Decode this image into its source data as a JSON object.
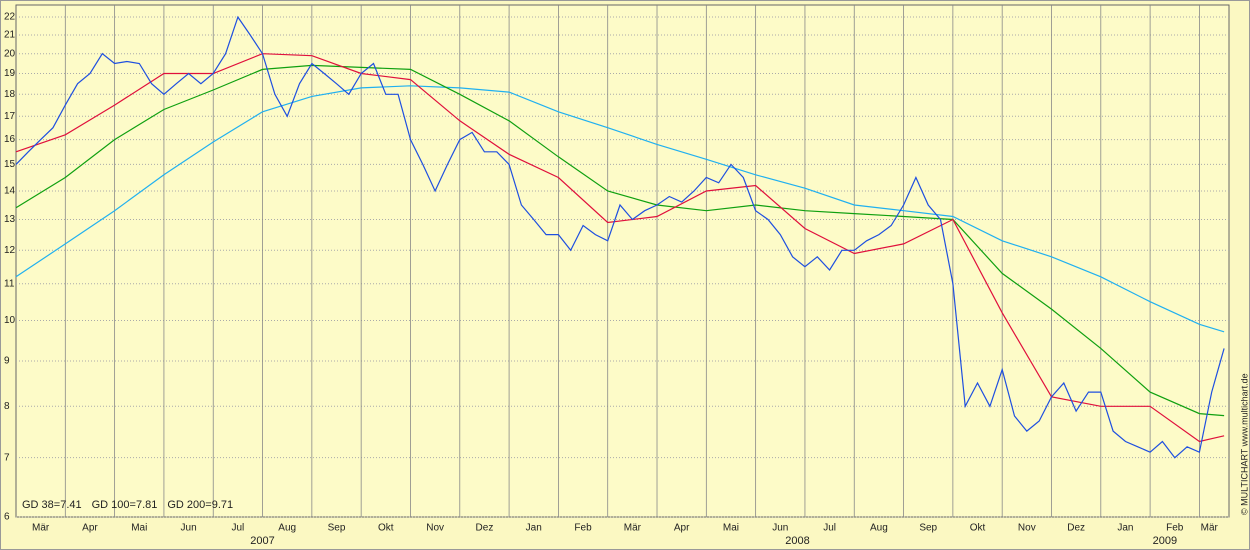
{
  "chart_data": {
    "type": "line",
    "log_scale": true,
    "grid": true,
    "xlim": [
      0,
      24.6
    ],
    "ylim": [
      6,
      22.7
    ],
    "yticks": [
      6,
      7,
      8,
      9,
      10,
      11,
      12,
      13,
      14,
      15,
      16,
      17,
      18,
      19,
      20,
      21,
      22
    ],
    "xticks": [
      {
        "value": 0.5,
        "label": "Mär"
      },
      {
        "value": 1.5,
        "label": "Apr"
      },
      {
        "value": 2.5,
        "label": "Mai"
      },
      {
        "value": 3.5,
        "label": "Jun"
      },
      {
        "value": 4.5,
        "label": "Jul"
      },
      {
        "value": 5.5,
        "label": "Aug"
      },
      {
        "value": 6.5,
        "label": "Sep"
      },
      {
        "value": 7.5,
        "label": "Okt"
      },
      {
        "value": 8.5,
        "label": "Nov"
      },
      {
        "value": 9.5,
        "label": "Dez"
      },
      {
        "value": 10.5,
        "label": "Jan"
      },
      {
        "value": 11.5,
        "label": "Feb"
      },
      {
        "value": 12.5,
        "label": "Mär"
      },
      {
        "value": 13.5,
        "label": "Apr"
      },
      {
        "value": 14.5,
        "label": "Mai"
      },
      {
        "value": 15.5,
        "label": "Jun"
      },
      {
        "value": 16.5,
        "label": "Jul"
      },
      {
        "value": 17.5,
        "label": "Aug"
      },
      {
        "value": 18.5,
        "label": "Sep"
      },
      {
        "value": 19.5,
        "label": "Okt"
      },
      {
        "value": 20.5,
        "label": "Nov"
      },
      {
        "value": 21.5,
        "label": "Dez"
      },
      {
        "value": 22.5,
        "label": "Jan"
      },
      {
        "value": 23.5,
        "label": "Feb"
      },
      {
        "value": 24.2,
        "label": "Mär"
      }
    ],
    "year_labels": [
      {
        "value": 5,
        "label": "2007"
      },
      {
        "value": 15.85,
        "label": "2008"
      },
      {
        "value": 23.3,
        "label": "2009"
      }
    ],
    "watermark": "© MULTICHART   www.multichart.de",
    "series": [
      {
        "name": "price",
        "color": "#1e4fe0",
        "legend": false,
        "x": [
          0,
          0.25,
          0.5,
          0.75,
          1,
          1.25,
          1.5,
          1.75,
          2,
          2.25,
          2.5,
          2.75,
          3,
          3.25,
          3.5,
          3.75,
          4,
          4.25,
          4.5,
          4.75,
          5,
          5.25,
          5.5,
          5.75,
          6,
          6.25,
          6.5,
          6.75,
          7,
          7.25,
          7.5,
          7.75,
          8,
          8.25,
          8.5,
          8.75,
          9,
          9.25,
          9.5,
          9.75,
          10,
          10.25,
          10.5,
          10.75,
          11,
          11.25,
          11.5,
          11.75,
          12,
          12.25,
          12.5,
          12.75,
          13,
          13.25,
          13.5,
          13.75,
          14,
          14.25,
          14.5,
          14.75,
          15,
          15.25,
          15.5,
          15.75,
          16,
          16.25,
          16.5,
          16.75,
          17,
          17.25,
          17.5,
          17.75,
          18,
          18.25,
          18.5,
          18.75,
          19,
          19.25,
          19.5,
          19.75,
          20,
          20.25,
          20.5,
          20.75,
          21,
          21.25,
          21.5,
          21.75,
          22,
          22.25,
          22.5,
          22.75,
          23,
          23.25,
          23.5,
          23.75,
          24,
          24.25,
          24.5
        ],
        "values": [
          15,
          15.5,
          16,
          16.5,
          17.5,
          18.5,
          19,
          20,
          19.5,
          19.6,
          19.5,
          18.5,
          18,
          18.5,
          19,
          18.5,
          19,
          20,
          22,
          21,
          20,
          18,
          17,
          18.5,
          19.5,
          19,
          18.5,
          18,
          19,
          19.5,
          18,
          18,
          16,
          15,
          14,
          15,
          16,
          16.3,
          15.5,
          15.5,
          15,
          13.5,
          13,
          12.5,
          12.5,
          12,
          12.8,
          12.5,
          12.3,
          13.5,
          13,
          13.3,
          13.5,
          13.8,
          13.6,
          14,
          14.5,
          14.3,
          15,
          14.5,
          13.3,
          13,
          12.5,
          11.8,
          11.5,
          11.8,
          11.4,
          12,
          12,
          12.3,
          12.5,
          12.8,
          13.5,
          14.5,
          13.5,
          13,
          11,
          8,
          8.5,
          8,
          8.8,
          7.8,
          7.5,
          7.7,
          8.2,
          8.5,
          7.9,
          8.3,
          8.3,
          7.5,
          7.3,
          7.2,
          7.1,
          7.3,
          7,
          7.2,
          7.1,
          8.3,
          9.3
        ]
      },
      {
        "name": "GD 38=7.41",
        "color": "#e0103c",
        "legend": true,
        "x": [
          0,
          1,
          2,
          3,
          4,
          5,
          6,
          7,
          8,
          9,
          10,
          11,
          12,
          13,
          14,
          15,
          16,
          17,
          18,
          19,
          20,
          21,
          22,
          23,
          24,
          24.5
        ],
        "values": [
          15.5,
          16.2,
          17.5,
          19.0,
          19.0,
          20.0,
          19.9,
          19.0,
          18.7,
          16.8,
          15.4,
          14.5,
          12.9,
          13.1,
          14.0,
          14.2,
          12.7,
          11.9,
          12.2,
          13.0,
          10.2,
          8.2,
          8.0,
          8.0,
          7.3,
          7.41
        ]
      },
      {
        "name": "GD 100=7.81",
        "color": "#10a010",
        "legend": true,
        "x": [
          0,
          1,
          2,
          3,
          4,
          5,
          6,
          7,
          8,
          9,
          10,
          11,
          12,
          13,
          14,
          15,
          16,
          17,
          18,
          19,
          20,
          21,
          22,
          23,
          24,
          24.5
        ],
        "values": [
          13.4,
          14.5,
          16.0,
          17.3,
          18.2,
          19.2,
          19.4,
          19.3,
          19.2,
          18.0,
          16.8,
          15.3,
          14.0,
          13.5,
          13.3,
          13.5,
          13.3,
          13.2,
          13.1,
          13.0,
          11.3,
          10.3,
          9.3,
          8.3,
          7.85,
          7.81
        ]
      },
      {
        "name": "GD 200=9.71",
        "color": "#20b0f0",
        "legend": true,
        "x": [
          0,
          1,
          2,
          3,
          4,
          5,
          6,
          7,
          8,
          9,
          10,
          11,
          12,
          13,
          14,
          15,
          16,
          17,
          18,
          19,
          20,
          21,
          22,
          23,
          24,
          24.5
        ],
        "values": [
          11.2,
          12.2,
          13.3,
          14.6,
          15.9,
          17.2,
          17.9,
          18.3,
          18.4,
          18.3,
          18.1,
          17.2,
          16.5,
          15.8,
          15.2,
          14.6,
          14.1,
          13.5,
          13.3,
          13.1,
          12.3,
          11.8,
          11.2,
          10.5,
          9.9,
          9.71
        ]
      }
    ]
  }
}
